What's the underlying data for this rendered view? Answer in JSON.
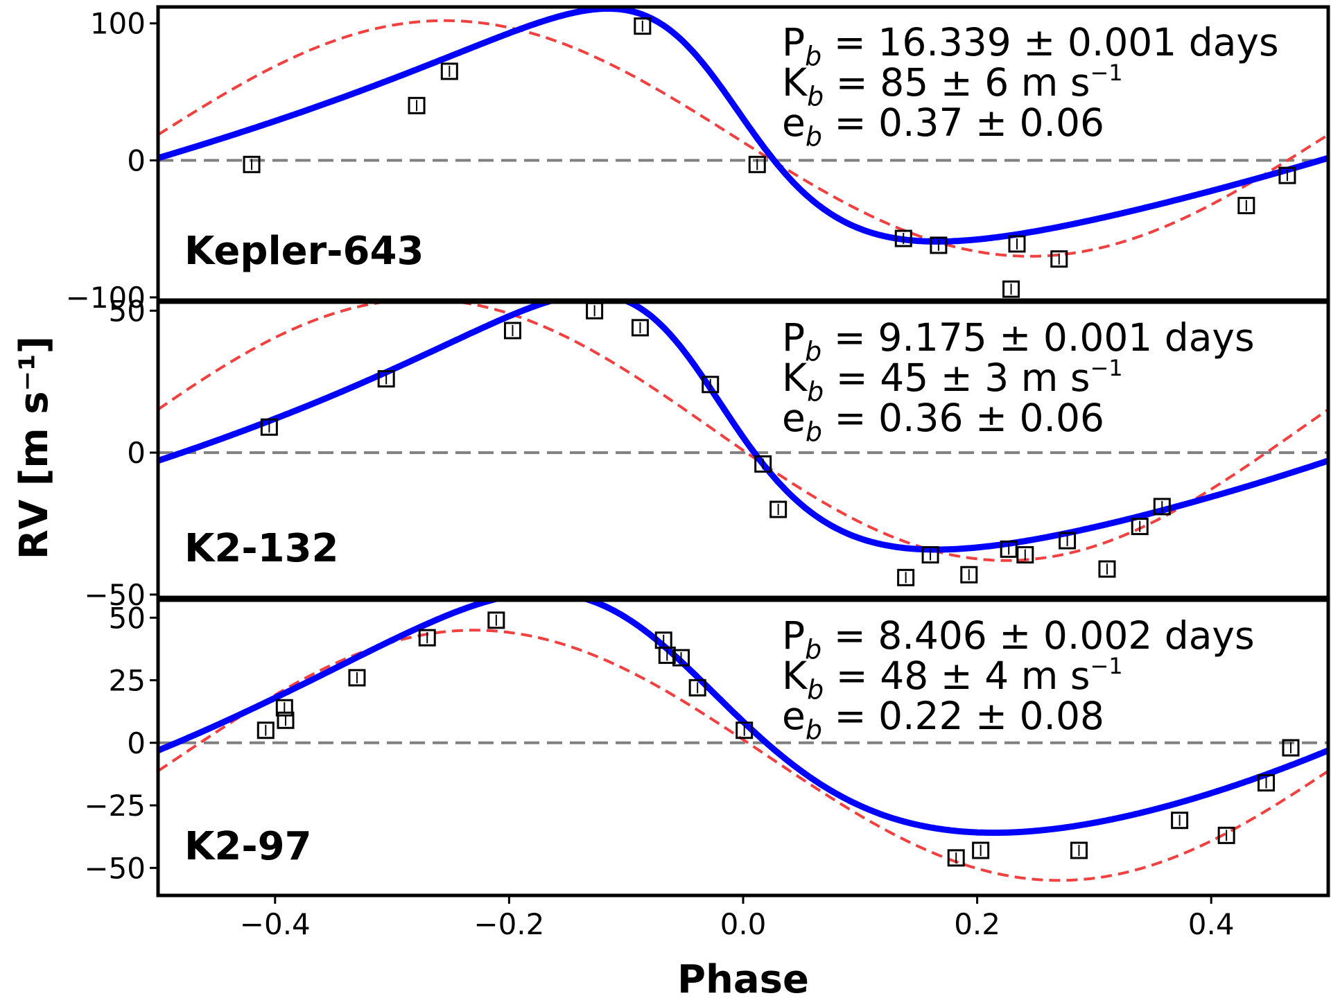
{
  "chart_data": {
    "type": "scatter",
    "xlabel": "Phase",
    "ylabel": "RV [m s⁻¹]",
    "xlim": [
      -0.5,
      0.5
    ],
    "x_ticks": [
      {
        "value": -0.4,
        "label": "−0.4"
      },
      {
        "value": -0.2,
        "label": "−0.2"
      },
      {
        "value": 0.0,
        "label": "0.0"
      },
      {
        "value": 0.2,
        "label": "0.2"
      },
      {
        "value": 0.4,
        "label": "0.4"
      }
    ],
    "colors": {
      "fit": "#0000ff",
      "alt_fit": "#f04040",
      "zero_line": "#808080",
      "points": "#000000"
    },
    "panels": [
      {
        "name": "Kepler-643",
        "ylim": [
          -102,
          112
        ],
        "y_ticks": [
          {
            "value": 100,
            "label": "100"
          },
          {
            "value": 0,
            "label": "0"
          },
          {
            "value": -100,
            "label": "−100"
          }
        ],
        "params": [
          {
            "sym": "P",
            "sub": "b",
            "text": " = 16.339 ± 0.001 days",
            "sup": ""
          },
          {
            "sym": "K",
            "sub": "b",
            "text": " = 85 ± 6 m s",
            "sup": "−1"
          },
          {
            "sym": "e",
            "sub": "b",
            "text": " = 0.37 ± 0.06",
            "sup": ""
          }
        ],
        "points": [
          {
            "x": -0.42,
            "y": -3
          },
          {
            "x": -0.279,
            "y": 40
          },
          {
            "x": -0.251,
            "y": 65
          },
          {
            "x": -0.086,
            "y": 98
          },
          {
            "x": 0.012,
            "y": -3
          },
          {
            "x": 0.137,
            "y": -57
          },
          {
            "x": 0.167,
            "y": -62
          },
          {
            "x": 0.229,
            "y": -94
          },
          {
            "x": 0.234,
            "y": -61
          },
          {
            "x": 0.27,
            "y": -72
          },
          {
            "x": 0.43,
            "y": -33
          },
          {
            "x": 0.465,
            "y": -11
          }
        ],
        "fit": {
          "K": 85,
          "e": 0.37,
          "omega_deg": 70,
          "tp_phase": -0.02,
          "offset": 15
        },
        "alt_fit": {
          "amplitude": 86,
          "center": -0.255,
          "offset": 16
        }
      },
      {
        "name": "K2-132",
        "ylim": [
          -51,
          53
        ],
        "y_ticks": [
          {
            "value": 50,
            "label": "50"
          },
          {
            "value": 0,
            "label": "0"
          },
          {
            "value": -50,
            "label": "−50"
          }
        ],
        "params": [
          {
            "sym": "P",
            "sub": "b",
            "text": " = 9.175 ± 0.001 days",
            "sup": ""
          },
          {
            "sym": "K",
            "sub": "b",
            "text": " = 45 ± 3 m s",
            "sup": "−1"
          },
          {
            "sym": "e",
            "sub": "b",
            "text": " = 0.36 ± 0.06",
            "sup": ""
          }
        ],
        "points": [
          {
            "x": -0.405,
            "y": 9
          },
          {
            "x": -0.305,
            "y": 26
          },
          {
            "x": -0.197,
            "y": 43
          },
          {
            "x": -0.127,
            "y": 50
          },
          {
            "x": -0.088,
            "y": 44
          },
          {
            "x": -0.028,
            "y": 24
          },
          {
            "x": 0.017,
            "y": -4
          },
          {
            "x": 0.03,
            "y": -20
          },
          {
            "x": 0.139,
            "y": -44
          },
          {
            "x": 0.16,
            "y": -36
          },
          {
            "x": 0.193,
            "y": -43
          },
          {
            "x": 0.227,
            "y": -34
          },
          {
            "x": 0.241,
            "y": -36
          },
          {
            "x": 0.277,
            "y": -31
          },
          {
            "x": 0.311,
            "y": -41
          },
          {
            "x": 0.339,
            "y": -26
          },
          {
            "x": 0.358,
            "y": -19
          }
        ],
        "fit": {
          "K": 45,
          "e": 0.36,
          "omega_deg": 65,
          "tp_phase": -0.04,
          "offset": 4
        },
        "alt_fit": {
          "amplitude": 46,
          "center": -0.275,
          "offset": 8
        }
      },
      {
        "name": "K2-97",
        "ylim": [
          -61,
          57
        ],
        "y_ticks": [
          {
            "value": 50,
            "label": "50"
          },
          {
            "value": 25,
            "label": "25"
          },
          {
            "value": 0,
            "label": "0"
          },
          {
            "value": -25,
            "label": "−25"
          },
          {
            "value": -50,
            "label": "−50"
          }
        ],
        "params": [
          {
            "sym": "P",
            "sub": "b",
            "text": " = 8.406 ± 0.002 days",
            "sup": ""
          },
          {
            "sym": "K",
            "sub": "b",
            "text": " = 48 ± 4 m s",
            "sup": "−1"
          },
          {
            "sym": "e",
            "sub": "b",
            "text": " = 0.22 ± 0.08",
            "sup": ""
          }
        ],
        "points": [
          {
            "x": -0.408,
            "y": 5
          },
          {
            "x": -0.391,
            "y": 9
          },
          {
            "x": -0.392,
            "y": 14
          },
          {
            "x": -0.33,
            "y": 26
          },
          {
            "x": -0.27,
            "y": 42
          },
          {
            "x": -0.211,
            "y": 49
          },
          {
            "x": -0.068,
            "y": 41
          },
          {
            "x": -0.065,
            "y": 35
          },
          {
            "x": -0.053,
            "y": 34
          },
          {
            "x": -0.039,
            "y": 22
          },
          {
            "x": 0.001,
            "y": 5
          },
          {
            "x": 0.182,
            "y": -46
          },
          {
            "x": 0.203,
            "y": -43
          },
          {
            "x": 0.287,
            "y": -43
          },
          {
            "x": 0.373,
            "y": -31
          },
          {
            "x": 0.413,
            "y": -37
          },
          {
            "x": 0.447,
            "y": -16
          },
          {
            "x": 0.468,
            "y": -2
          }
        ],
        "fit": {
          "K": 48,
          "e": 0.22,
          "omega_deg": 55,
          "tp_phase": -0.07,
          "offset": 6
        },
        "alt_fit": {
          "amplitude": 50,
          "center": -0.23,
          "offset": -5
        }
      }
    ]
  }
}
